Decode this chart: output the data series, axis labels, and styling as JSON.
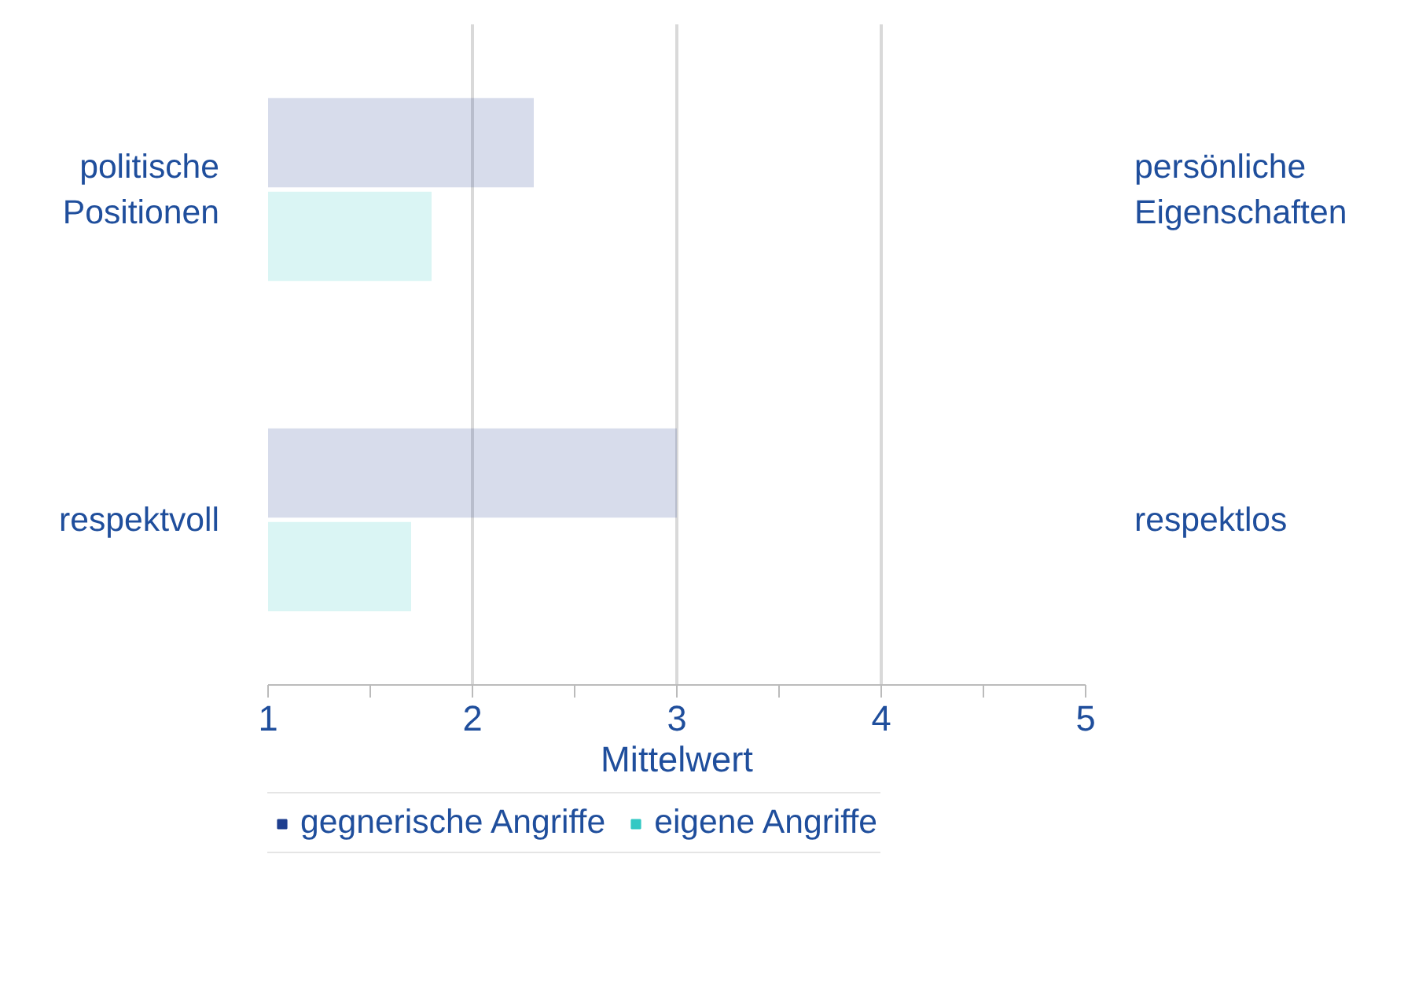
{
  "chart_data": {
    "type": "bar",
    "orientation": "horizontal",
    "categories": [
      "politische Positionen",
      "respektvoll"
    ],
    "y2_categories": [
      "persönliche Eigenschaften",
      "respektlos"
    ],
    "xlabel": "Mittelwert",
    "xlim": [
      1,
      5
    ],
    "xticks": [
      1,
      {
        "value": 1.5,
        "label": null
      },
      2,
      {
        "value": 2.5,
        "label": null
      },
      3,
      {
        "value": 3.5,
        "label": null
      },
      4,
      {
        "value": 4.5,
        "label": null
      },
      5
    ],
    "grid": "x",
    "legend": "bottom",
    "series": [
      {
        "name": "gegnerische Angriffe",
        "color": "#1f3f8f",
        "values": [
          2.3,
          3.0
        ]
      },
      {
        "name": "eigene Angriffe",
        "color": "#33c8c4",
        "values": [
          1.8,
          1.7
        ]
      }
    ]
  }
}
